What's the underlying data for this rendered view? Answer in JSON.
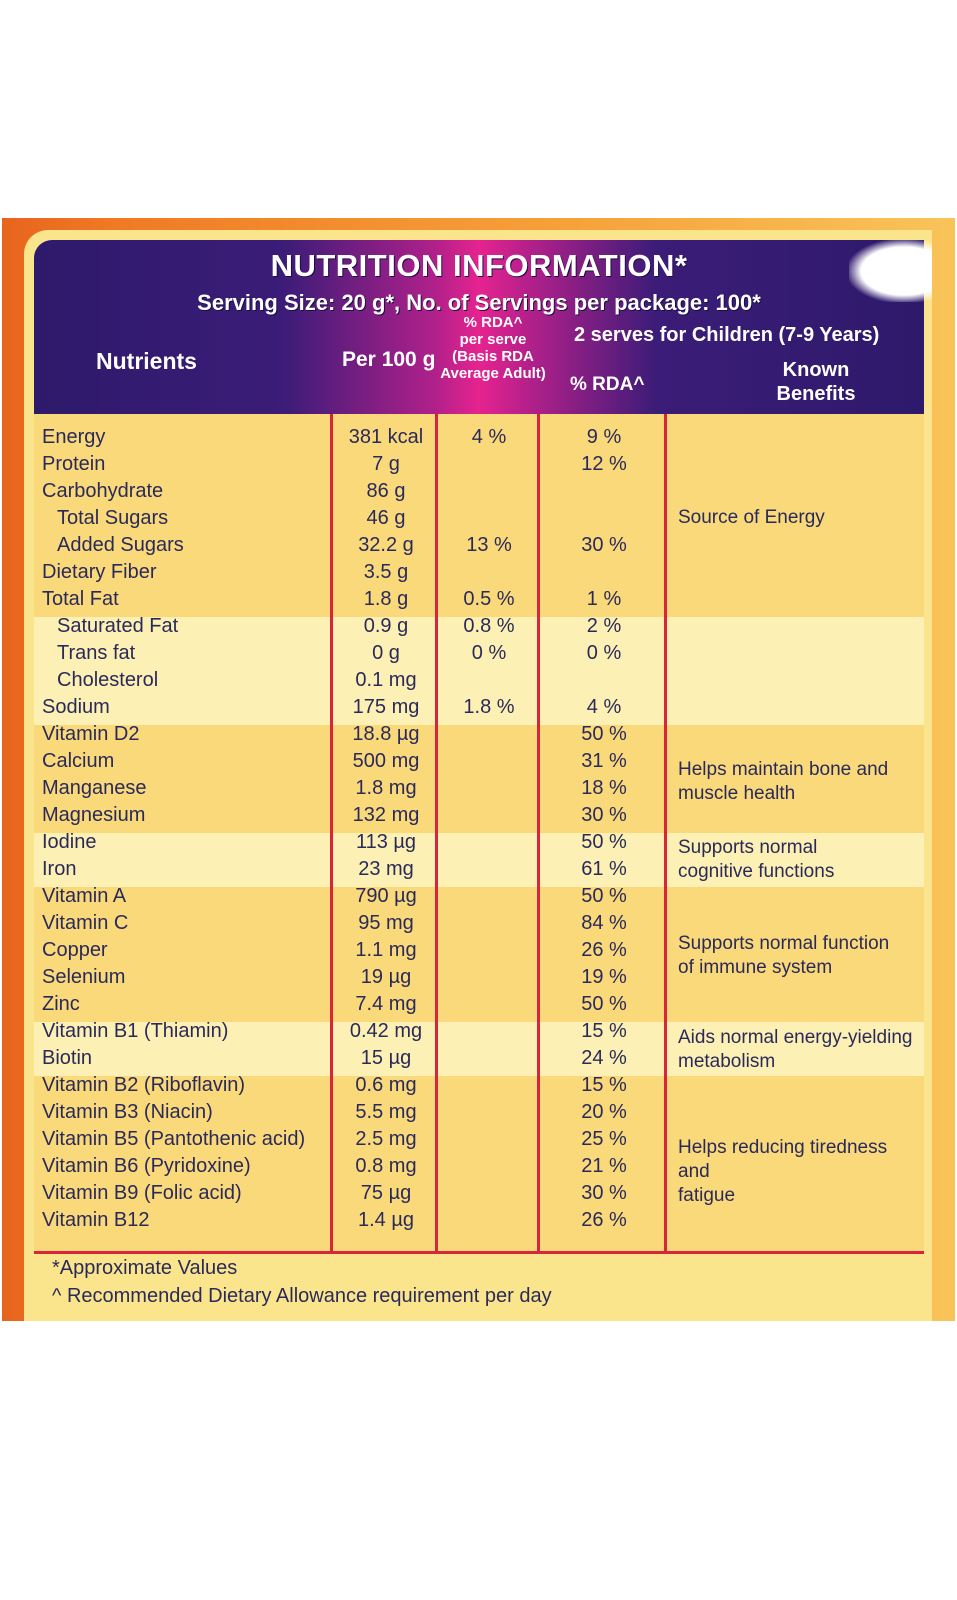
{
  "header": {
    "title": "NUTRITION INFORMATION*",
    "serving": "Serving Size: 20 g*, No. of Servings per package: 100*",
    "col_nutrients": "Nutrients",
    "col_per100": "Per 100 g",
    "col_rda_serve_l1": "% RDA^",
    "col_rda_serve_l2": "per serve",
    "col_rda_serve_l3": "(Basis RDA",
    "col_rda_serve_l4": "Average Adult)",
    "col_children": "2 serves for Children (7-9 Years)",
    "col_rda_children": "% RDA^",
    "col_benefits_l1": "Known",
    "col_benefits_l2": "Benefits"
  },
  "rows": [
    {
      "name": "Energy",
      "per100": "381 kcal",
      "rda_serve": "4 %",
      "rda_child": "9 %"
    },
    {
      "name": "Protein",
      "per100": "7 g",
      "rda_serve": "",
      "rda_child": "12 %"
    },
    {
      "name": "Carbohydrate",
      "per100": "86 g",
      "rda_serve": "",
      "rda_child": ""
    },
    {
      "name": "Total Sugars",
      "per100": "46 g",
      "rda_serve": "",
      "rda_child": ""
    },
    {
      "name": "Added Sugars",
      "per100": "32.2 g",
      "rda_serve": "13 %",
      "rda_child": "30 %"
    },
    {
      "name": "Dietary Fiber",
      "per100": "3.5 g",
      "rda_serve": "",
      "rda_child": ""
    },
    {
      "name": "Total Fat",
      "per100": "1.8 g",
      "rda_serve": "0.5 %",
      "rda_child": "1 %"
    },
    {
      "name": "Saturated Fat",
      "per100": "0.9 g",
      "rda_serve": "0.8 %",
      "rda_child": "2 %"
    },
    {
      "name": "Trans fat",
      "per100": "0 g",
      "rda_serve": "0 %",
      "rda_child": "0 %"
    },
    {
      "name": "Cholesterol",
      "per100": "0.1 mg",
      "rda_serve": "",
      "rda_child": ""
    },
    {
      "name": "Sodium",
      "per100": "175 mg",
      "rda_serve": "1.8 %",
      "rda_child": "4 %"
    },
    {
      "name": "Vitamin D2",
      "per100": "18.8 µg",
      "rda_serve": "",
      "rda_child": "50 %"
    },
    {
      "name": "Calcium",
      "per100": "500 mg",
      "rda_serve": "",
      "rda_child": "31 %"
    },
    {
      "name": "Manganese",
      "per100": "1.8 mg",
      "rda_serve": "",
      "rda_child": "18 %"
    },
    {
      "name": "Magnesium",
      "per100": "132 mg",
      "rda_serve": "",
      "rda_child": "30 %"
    },
    {
      "name": "Iodine",
      "per100": "113 µg",
      "rda_serve": "",
      "rda_child": "50 %"
    },
    {
      "name": "Iron",
      "per100": "23 mg",
      "rda_serve": "",
      "rda_child": "61 %"
    },
    {
      "name": "Vitamin A",
      "per100": "790 µg",
      "rda_serve": "",
      "rda_child": "50 %"
    },
    {
      "name": "Vitamin C",
      "per100": "95 mg",
      "rda_serve": "",
      "rda_child": "84 %"
    },
    {
      "name": "Copper",
      "per100": "1.1 mg",
      "rda_serve": "",
      "rda_child": "26 %"
    },
    {
      "name": "Selenium",
      "per100": "19 µg",
      "rda_serve": "",
      "rda_child": "19 %"
    },
    {
      "name": "Zinc",
      "per100": "7.4 mg",
      "rda_serve": "",
      "rda_child": "50 %"
    },
    {
      "name": "Vitamin B1 (Thiamin)",
      "per100": "0.42 mg",
      "rda_serve": "",
      "rda_child": "15 %"
    },
    {
      "name": "Biotin",
      "per100": "15 µg",
      "rda_serve": "",
      "rda_child": "24 %"
    },
    {
      "name": "Vitamin B2 (Riboflavin)",
      "per100": "0.6 mg",
      "rda_serve": "",
      "rda_child": "15 %"
    },
    {
      "name": "Vitamin B3 (Niacin)",
      "per100": "5.5 mg",
      "rda_serve": "",
      "rda_child": "20 %"
    },
    {
      "name": "Vitamin B5 (Pantothenic acid)",
      "per100": "2.5 mg",
      "rda_serve": "",
      "rda_child": "25 %"
    },
    {
      "name": "Vitamin B6 (Pyridoxine)",
      "per100": "0.8 mg",
      "rda_serve": "",
      "rda_child": "21 %"
    },
    {
      "name": "Vitamin B9 (Folic acid)",
      "per100": "75 µg",
      "rda_serve": "",
      "rda_child": "30 %"
    },
    {
      "name": "Vitamin B12",
      "per100": "1.4 µg",
      "rda_serve": "",
      "rda_child": "26 %"
    }
  ],
  "benefits": {
    "energy": "Source of Energy",
    "bone_l1": "Helps maintain bone and",
    "bone_l2": "muscle health",
    "cognitive_l1": "Supports normal",
    "cognitive_l2": "cognitive functions",
    "immune_l1": "Supports normal function",
    "immune_l2": "of immune system",
    "metabolism_l1": "Aids normal energy-yielding",
    "metabolism_l2": "metabolism",
    "tiredness_l1": "Helps reducing tiredness and",
    "tiredness_l2": "fatigue"
  },
  "footnotes": {
    "approx": "*Approximate Values",
    "rda": "^ Recommended Dietary Allowance requirement per day"
  }
}
